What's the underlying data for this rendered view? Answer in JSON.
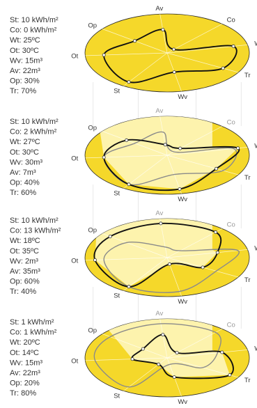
{
  "chart_data": {
    "type": "radar",
    "axes": [
      {
        "key": "Av",
        "label": "Av",
        "unit": "m³"
      },
      {
        "key": "Co",
        "label": "Co",
        "unit": "kWh/m²"
      },
      {
        "key": "Wt",
        "label": "Wt",
        "unit": "ºC"
      },
      {
        "key": "Tr",
        "label": "Tr",
        "unit": "%"
      },
      {
        "key": "Wv",
        "label": "Wv",
        "unit": "m³"
      },
      {
        "key": "St",
        "label": "St",
        "unit": "kWh/m²"
      },
      {
        "key": "Ot",
        "label": "Ot",
        "unit": "ºC"
      },
      {
        "key": "Op",
        "label": "Op",
        "unit": "%"
      }
    ],
    "panels": [
      {
        "legend": [
          "St: 10 kWh/m²",
          "Co: 0 kWh/m²",
          "Wt: 25ºC",
          "Ot: 30ºC",
          "Wv: 15m³",
          "Av: 22m³",
          "Op: 30%",
          "Tr: 70%"
        ],
        "values": {
          "St": 10,
          "Co": 0,
          "Wt": 25,
          "Ot": 30,
          "Wv": 15,
          "Av": 22,
          "Op": 30,
          "Tr": 70
        }
      },
      {
        "legend": [
          "St: 10 kWh/m²",
          "Co: 2 kWh/m²",
          "Wt: 27ºC",
          "Ot: 30ºC",
          "Wv: 30m³",
          "Av: 7m³",
          "Op: 40%",
          "Tr: 60%"
        ],
        "values": {
          "St": 10,
          "Co": 2,
          "Wt": 27,
          "Ot": 30,
          "Wv": 30,
          "Av": 7,
          "Op": 40,
          "Tr": 60
        }
      },
      {
        "legend": [
          "St: 10 kWh/m²",
          "Co: 13 kWh/m²",
          "Wt: 18ºC",
          "Ot: 35ºC",
          "Wv: 2m³",
          "Av: 35m³",
          "Op: 60%",
          "Tr: 40%"
        ],
        "values": {
          "St": 10,
          "Co": 13,
          "Wt": 18,
          "Ot": 35,
          "Wv": 2,
          "Av": 35,
          "Op": 60,
          "Tr": 40
        }
      },
      {
        "legend": [
          "St: 1 kWh/m²",
          "Co: 1 kWh/m²",
          "Wt: 20ºC",
          "Ot: 14ºC",
          "Wv: 15m³",
          "Av: 22m³",
          "Op: 20%",
          "Tr: 80%"
        ],
        "values": {
          "St": 1,
          "Co": 1,
          "Wt": 20,
          "Ot": 14,
          "Wv": 15,
          "Av": 22,
          "Op": 20,
          "Tr": 80
        }
      }
    ],
    "colors": {
      "disc": "#f5d82a",
      "disc_edge": "#2b2a26",
      "highlight": "#fdf5b8",
      "line_current": "#111111",
      "line_previous": "#8a8a8a"
    }
  }
}
